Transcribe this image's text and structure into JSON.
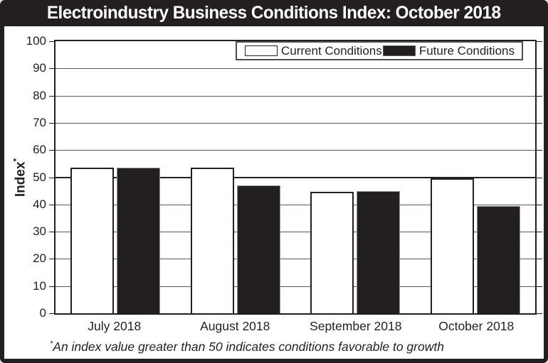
{
  "header": {
    "title": "Electroindustry Business Conditions Index: October 2018"
  },
  "legend": {
    "items": [
      {
        "label": "Current Conditions",
        "color": "#ffffff"
      },
      {
        "label": "Future Conditions",
        "color": "#231f20"
      }
    ]
  },
  "y_axis": {
    "title": "Index",
    "superscript": "*"
  },
  "footnote": {
    "symbol": "*",
    "text": "An index value greater than 50 indicates conditions favorable to growth"
  },
  "chart_data": {
    "type": "bar",
    "title": "Electroindustry Business Conditions Index: October 2018",
    "categories": [
      "July 2018",
      "August 2018",
      "September 2018",
      "October 2018"
    ],
    "series": [
      {
        "name": "Current Conditions",
        "fill": "#ffffff",
        "values": [
          53.4,
          53.4,
          44.6,
          49.5
        ]
      },
      {
        "name": "Future Conditions",
        "fill": "#231f20",
        "values": [
          53.6,
          46.9,
          44.8,
          39.3
        ]
      }
    ],
    "ylabel": "Index*",
    "ylim": [
      0,
      100
    ],
    "ytick_step": 10,
    "grid": true,
    "reference_line": 50,
    "legend_position": "top-right-inside",
    "colors": {
      "bar_black": "#231f20",
      "gridline_gray": "#58595b",
      "frame_black": "#231f20",
      "background": "#ffffff",
      "title_text": "#ffffff"
    }
  }
}
